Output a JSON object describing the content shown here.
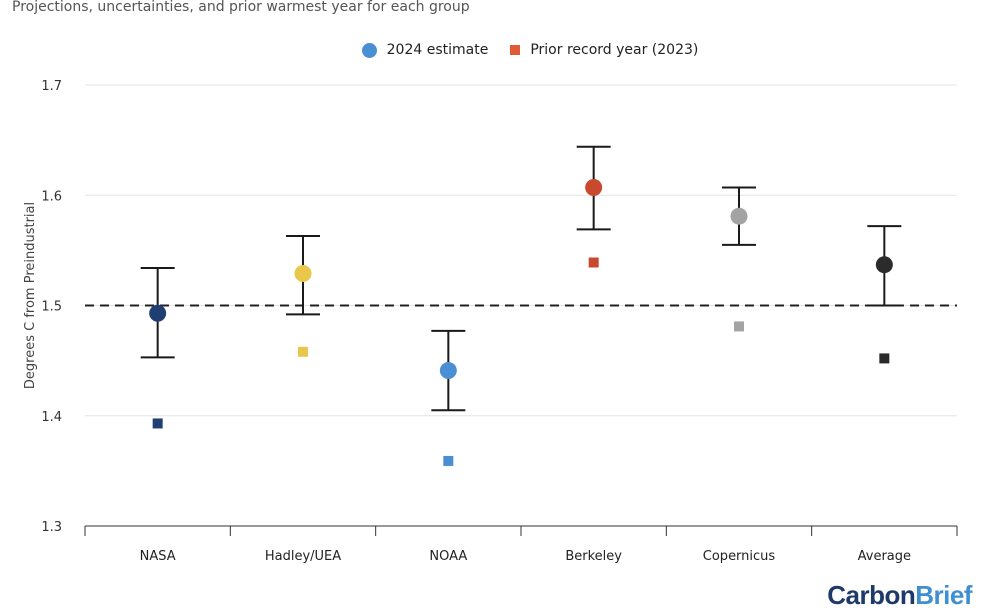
{
  "subtitle": "Projections, uncertainties, and prior warmest year for each group",
  "logo": {
    "part1": "Carbon",
    "part2": "Brief",
    "colors": [
      "#1d3a6b",
      "#3f8fd2"
    ]
  },
  "chart_data": {
    "type": "scatter",
    "ylabel": "Degrees C from Preindustrial",
    "xlabel": "",
    "ylim": [
      1.3,
      1.7
    ],
    "yticks": [
      "1.3",
      "1.4",
      "1.5",
      "1.6",
      "1.7"
    ],
    "grid": "horizontal",
    "reference_line": {
      "y": 1.5,
      "style": "dashed"
    },
    "legend": {
      "placement": "top-center",
      "entries": [
        {
          "label": "2024 estimate",
          "marker": "circle",
          "color": "#4a8fd4"
        },
        {
          "label": "Prior record year (2023)",
          "marker": "square",
          "color": "#e05a35"
        }
      ]
    },
    "categories": [
      "NASA",
      "Hadley/UEA",
      "NOAA",
      "Berkeley",
      "Copernicus",
      "Average"
    ],
    "colors": [
      "#1f3f73",
      "#e9c74a",
      "#4a8fd4",
      "#c8492d",
      "#a3a3a3",
      "#2b2b2b"
    ],
    "estimate_2024": [
      1.493,
      1.529,
      1.441,
      1.607,
      1.581,
      1.537
    ],
    "error_low": [
      1.453,
      1.492,
      1.405,
      1.569,
      1.555,
      1.5
    ],
    "error_high": [
      1.534,
      1.563,
      1.477,
      1.644,
      1.607,
      1.572
    ],
    "prior_record_2023": [
      1.393,
      1.458,
      1.359,
      1.539,
      1.481,
      1.452
    ]
  }
}
